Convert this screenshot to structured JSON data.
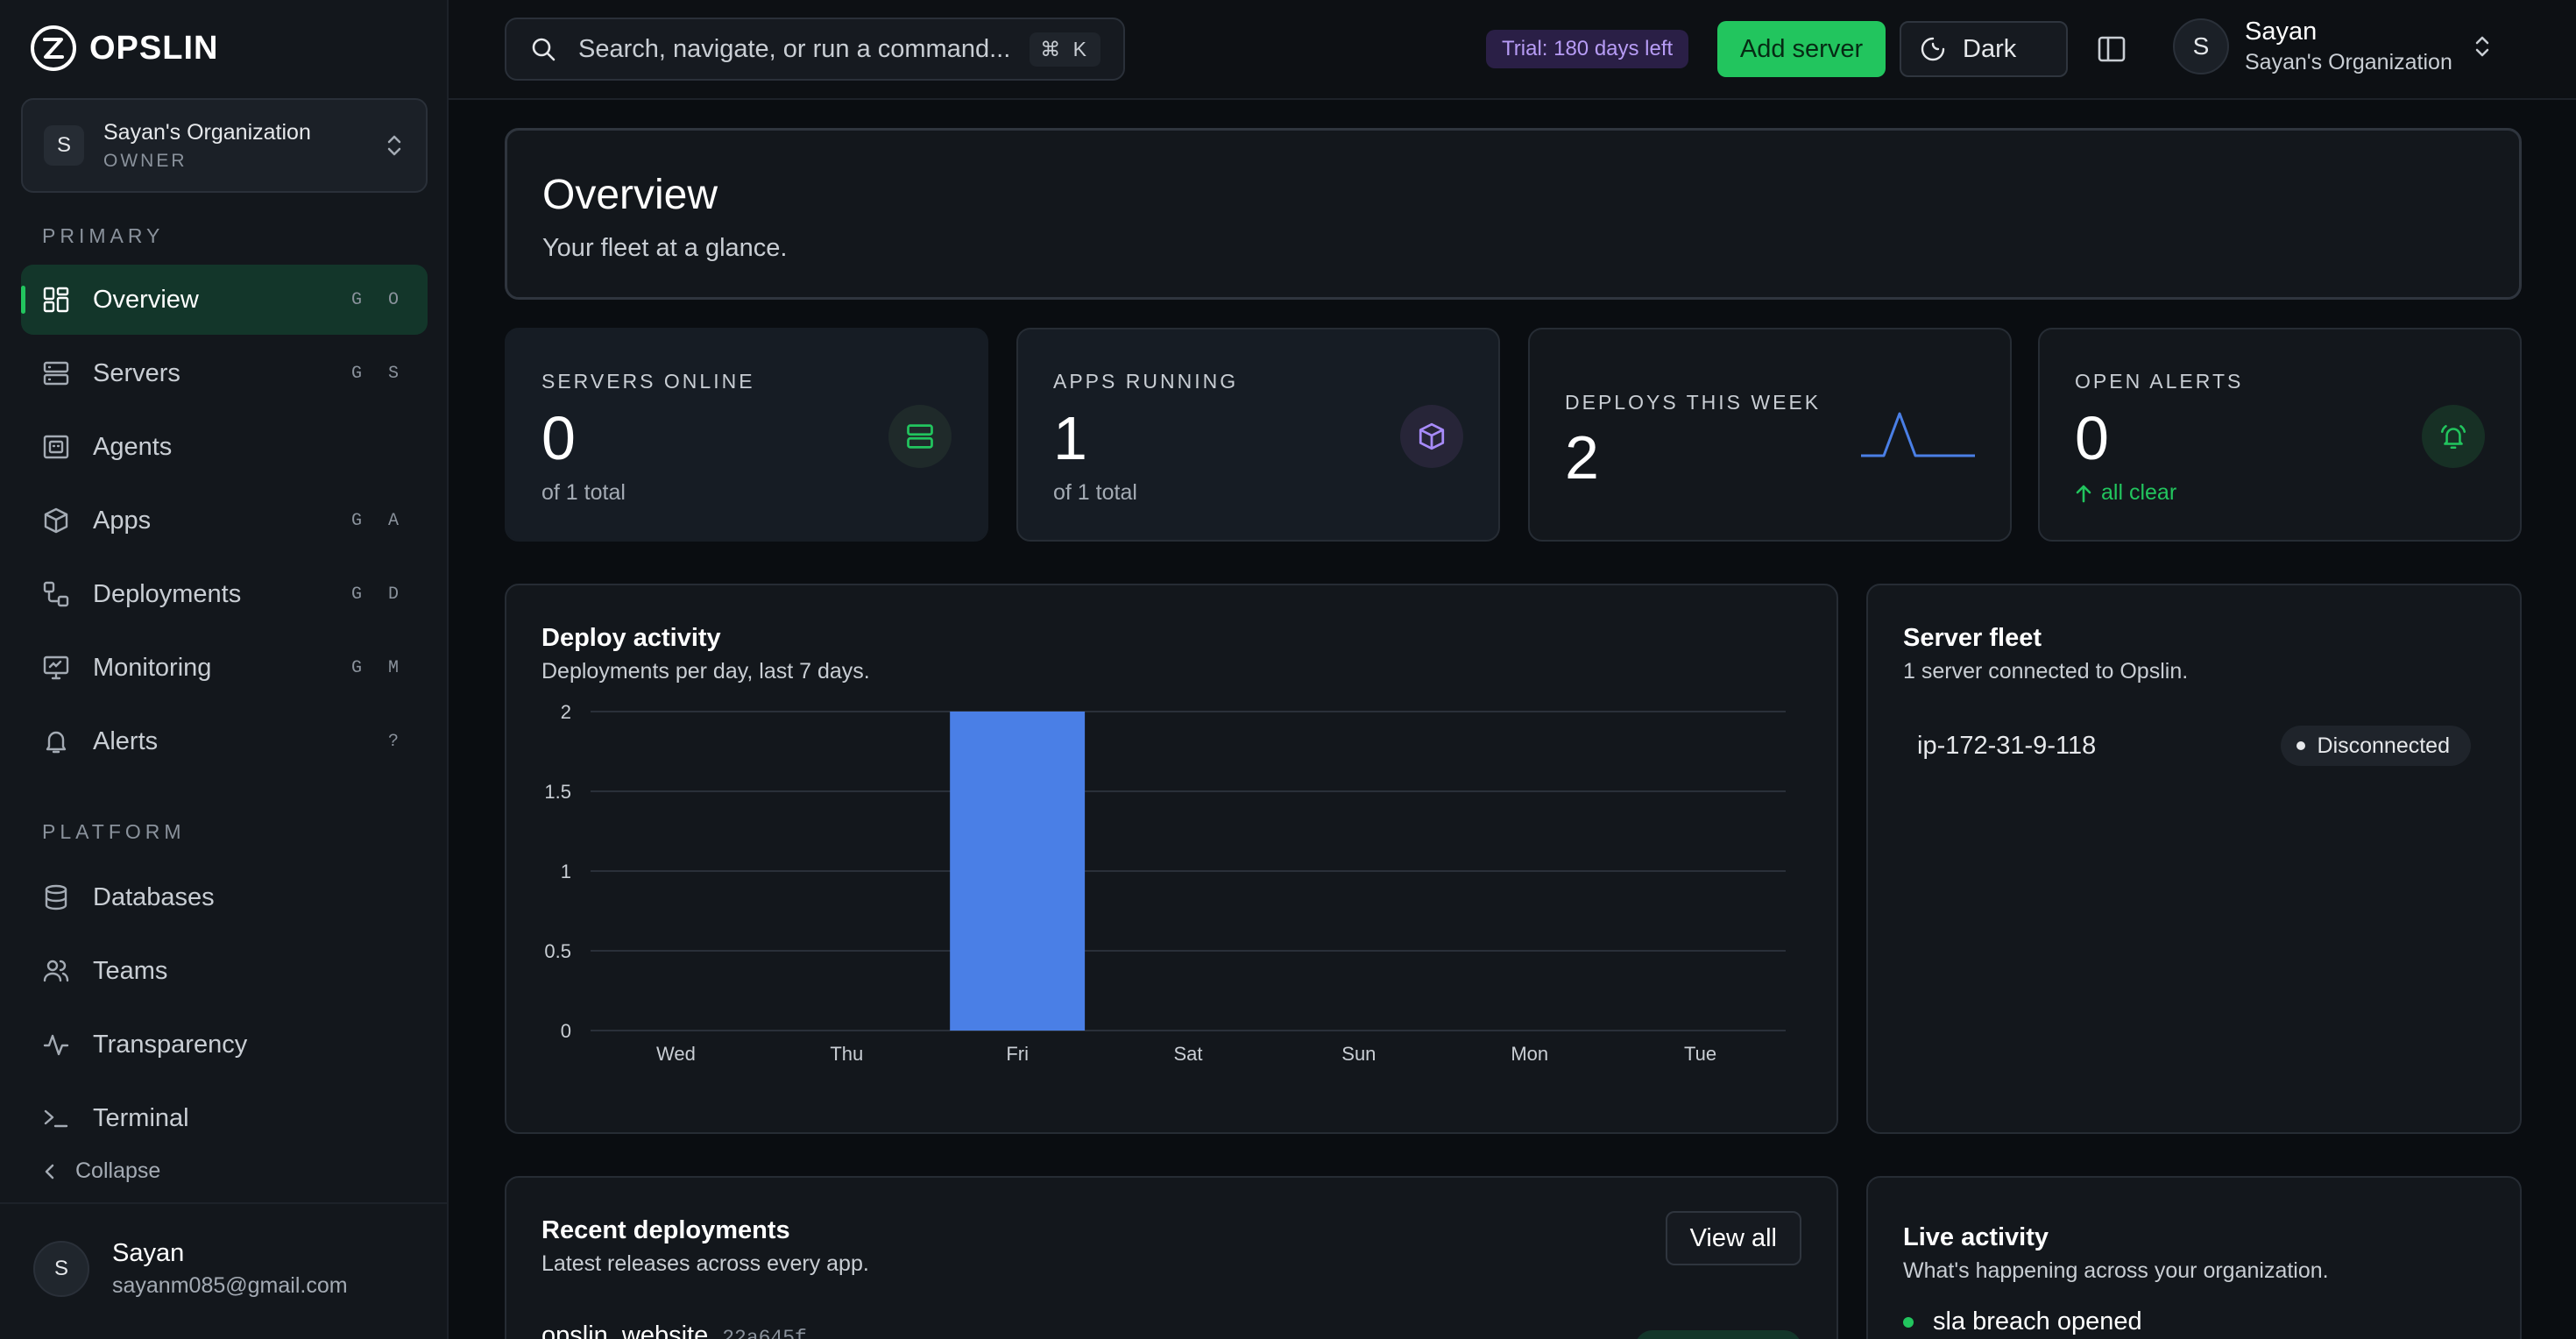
{
  "brand": {
    "name": "OPSLIN"
  },
  "org": {
    "avatar": "S",
    "name": "Sayan's Organization",
    "role": "OWNER"
  },
  "sections": {
    "primary": "PRIMARY",
    "platform": "PLATFORM"
  },
  "nav_primary": [
    {
      "label": "Overview",
      "shortcut": "G O",
      "icon": "grid-icon",
      "active": true
    },
    {
      "label": "Servers",
      "shortcut": "G S",
      "icon": "server-icon"
    },
    {
      "label": "Agents",
      "shortcut": "",
      "icon": "agent-icon"
    },
    {
      "label": "Apps",
      "shortcut": "G A",
      "icon": "package-icon"
    },
    {
      "label": "Deployments",
      "shortcut": "G D",
      "icon": "deploy-icon"
    },
    {
      "label": "Monitoring",
      "shortcut": "G M",
      "icon": "monitor-icon"
    },
    {
      "label": "Alerts",
      "shortcut": "?",
      "icon": "bell-icon"
    }
  ],
  "nav_platform": [
    {
      "label": "Databases",
      "icon": "database-icon"
    },
    {
      "label": "Teams",
      "icon": "users-icon"
    },
    {
      "label": "Transparency",
      "icon": "activity-icon"
    },
    {
      "label": "Terminal",
      "icon": "terminal-icon"
    }
  ],
  "collapse_label": "Collapse",
  "user": {
    "avatar": "S",
    "name": "Sayan",
    "email": "sayanm085@gmail.com"
  },
  "topbar": {
    "search_placeholder": "Search, navigate, or run a command...",
    "search_shortcut": "⌘ K",
    "trial": "Trial: 180 days left",
    "add_server": "Add server",
    "theme": "Dark",
    "user_name": "Sayan",
    "user_org": "Sayan's Organization",
    "user_avatar": "S"
  },
  "overview": {
    "title": "Overview",
    "subtitle": "Your fleet at a glance."
  },
  "stats": [
    {
      "label": "SERVERS ONLINE",
      "value": "0",
      "sub": "of 1 total"
    },
    {
      "label": "APPS RUNNING",
      "value": "1",
      "sub": "of 1 total"
    },
    {
      "label": "DEPLOYS THIS WEEK",
      "value": "2"
    },
    {
      "label": "OPEN ALERTS",
      "value": "0",
      "sub": "all clear"
    }
  ],
  "activity": {
    "title": "Deploy activity",
    "subtitle": "Deployments per day, last 7 days."
  },
  "chart_data": {
    "type": "bar",
    "title": "",
    "xlabel": "",
    "ylabel": "",
    "categories": [
      "Wed",
      "Thu",
      "Fri",
      "Sat",
      "Sun",
      "Mon",
      "Tue"
    ],
    "values": [
      0,
      0,
      2,
      0,
      0,
      0,
      0
    ],
    "ylim": [
      0,
      2
    ],
    "yticks": [
      "0",
      "0.5",
      "1",
      "1.5",
      "2"
    ],
    "grid": true,
    "color": "#4a7fe6"
  },
  "fleet": {
    "title": "Server fleet",
    "subtitle": "1 server connected to Opslin.",
    "servers": [
      {
        "name": "ip-172-31-9-118",
        "status": "Disconnected"
      }
    ]
  },
  "recent": {
    "title": "Recent deployments",
    "subtitle": "Latest releases across every app.",
    "view_all": "View all",
    "rows": [
      {
        "app": "opslin_website",
        "sha": "22a645f"
      }
    ]
  },
  "live": {
    "title": "Live activity",
    "subtitle": "What's happening across your organization.",
    "events": [
      "sla breach opened"
    ]
  },
  "colors": {
    "accent": "#22c55e",
    "chart_bar": "#4a7fe6",
    "trial_text": "#b79cf5"
  }
}
